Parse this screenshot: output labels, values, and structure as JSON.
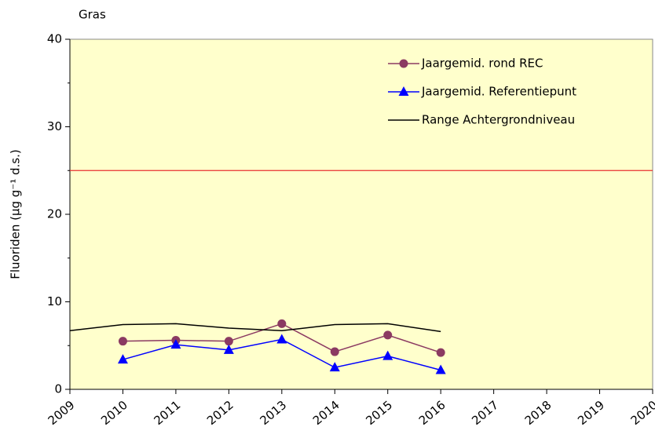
{
  "chart_data": {
    "type": "line",
    "title": "Gras",
    "y_label": "Fluoriden  (µg g⁻¹ d.s.)",
    "xlim": [
      2009,
      2020
    ],
    "xticks": [
      2009,
      2010,
      2011,
      2012,
      2013,
      2014,
      2015,
      2016,
      2017,
      2018,
      2019,
      2020
    ],
    "ylim": [
      0,
      40
    ],
    "yticks": [
      0,
      10,
      20,
      30,
      40
    ],
    "yminorticks": [
      5,
      15,
      25,
      35
    ],
    "grid": false,
    "background": "#ffffcc",
    "legend": "top-right",
    "hline": {
      "value": 25,
      "color": "#e83030"
    },
    "series": [
      {
        "name": "Jaargemid. rond REC",
        "color": "#8b3a62",
        "marker": "circle",
        "x": [
          2010,
          2011,
          2012,
          2013,
          2014,
          2015,
          2016
        ],
        "values": [
          5.5,
          5.6,
          5.5,
          7.5,
          4.3,
          6.2,
          4.2
        ]
      },
      {
        "name": "Jaargemid. Referentiepunt",
        "color": "#0000ff",
        "marker": "triangle",
        "x": [
          2010,
          2011,
          2012,
          2013,
          2014,
          2015,
          2016
        ],
        "values": [
          3.4,
          5.1,
          4.5,
          5.7,
          2.5,
          3.8,
          2.2
        ]
      },
      {
        "name": "Range Achtergrondniveau",
        "color": "#000000",
        "marker": "none",
        "x": [
          2009,
          2010,
          2011,
          2012,
          2013,
          2014,
          2015,
          2016
        ],
        "values": [
          6.7,
          7.4,
          7.5,
          7.0,
          6.7,
          7.4,
          7.5,
          6.6
        ]
      }
    ]
  }
}
